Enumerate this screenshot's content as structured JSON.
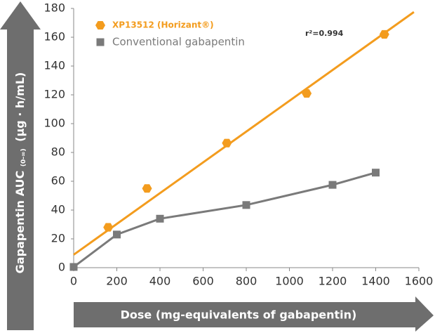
{
  "chart_data": {
    "type": "scatter-line",
    "x_label": "Dose (mg-equivalents of gabapentin)",
    "y_label": "Gapapentin AUC",
    "y_label_sub": "(0-∞)",
    "y_label_unit": "(μg · h/mL)",
    "xlim": [
      0,
      1600
    ],
    "ylim": [
      0,
      180
    ],
    "xticks": [
      0,
      200,
      400,
      600,
      800,
      1000,
      1200,
      1400,
      1600
    ],
    "yticks": [
      0,
      20,
      40,
      60,
      80,
      100,
      120,
      140,
      160,
      180
    ],
    "series": [
      {
        "name": "XP13512 (Horizant®)",
        "color": "#f39c1e",
        "marker": "hexagon",
        "connect": false,
        "x": [
          160,
          340,
          710,
          1080,
          1440
        ],
        "values": [
          28,
          55,
          86.5,
          121,
          162
        ]
      },
      {
        "name": "Conventional gabapentin",
        "color": "#7a7a7a",
        "marker": "square",
        "connect": true,
        "x": [
          0,
          200,
          400,
          800,
          1200,
          1400
        ],
        "values": [
          0.5,
          23,
          34,
          43.5,
          57.5,
          66
        ]
      }
    ],
    "fit": {
      "label": "r²=0.994",
      "color": "#f39c1e",
      "x": [
        0,
        1577
      ],
      "values": [
        9,
        177.5
      ]
    }
  }
}
